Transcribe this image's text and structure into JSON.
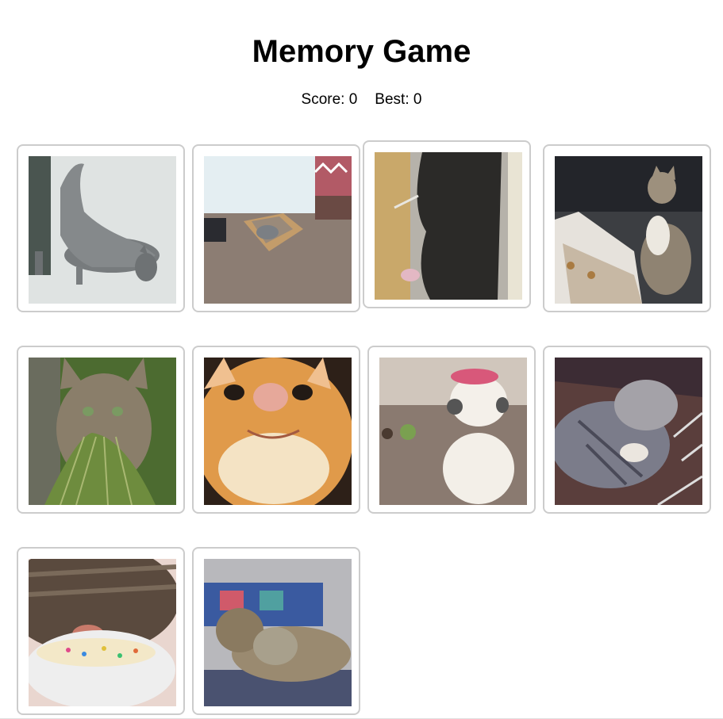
{
  "game": {
    "title": "Memory Game"
  },
  "scoreboard": {
    "score_text": "Score: 0",
    "best_text": "Best: 0"
  },
  "cards": [
    {
      "image": "kitten-stretching-grey-tabby"
    },
    {
      "image": "cat-in-cardboard-box"
    },
    {
      "image": "black-cat-standing-at-scratching-post"
    },
    {
      "image": "tabby-cat-sitting-in-car"
    },
    {
      "image": "wild-cat-with-grass-in-mouth"
    },
    {
      "image": "orange-cat-closeup-face"
    },
    {
      "image": "white-kitten-with-pink-hat"
    },
    {
      "image": "grey-tabby-sleeping-with-toy"
    },
    {
      "image": "tabby-cat-eating-from-cup"
    },
    {
      "image": "two-kittens-cuddling"
    }
  ]
}
